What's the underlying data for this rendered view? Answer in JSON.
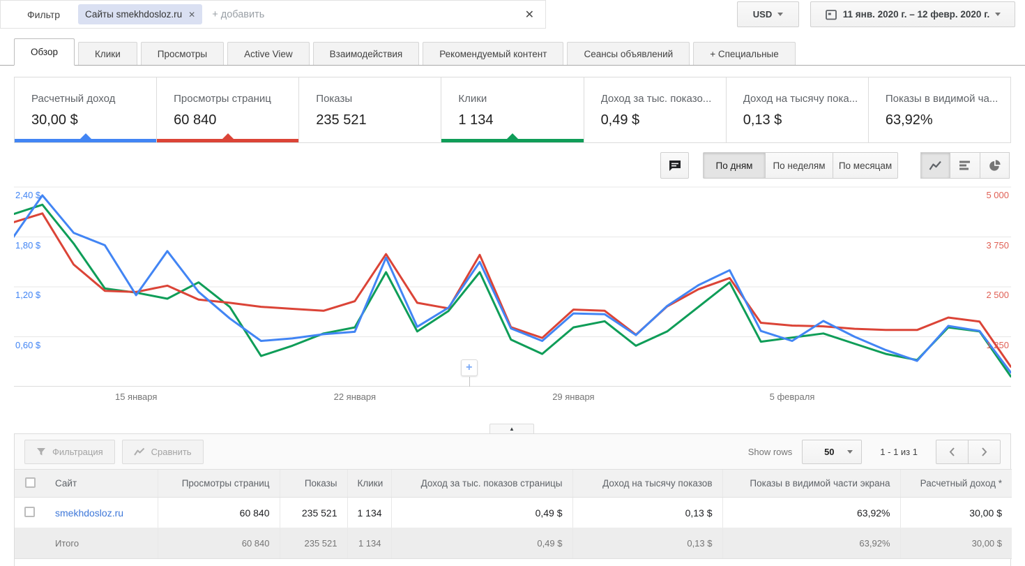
{
  "filter_bar": {
    "label": "Фильтр",
    "chip_text": "Сайты smekhdosloz.ru",
    "chip_remove": "✕",
    "add_placeholder": "+ добавить",
    "clear": "✕"
  },
  "currency_selector": {
    "value": "USD"
  },
  "date_range_picker": {
    "value": "11 янв. 2020 г. – 12 февр. 2020 г."
  },
  "tabs": [
    {
      "label": "Обзор",
      "active": true
    },
    {
      "label": "Клики",
      "active": false
    },
    {
      "label": "Просмотры",
      "active": false
    },
    {
      "label": "Active View",
      "active": false
    },
    {
      "label": "Взаимодействия",
      "active": false
    },
    {
      "label": "Рекомендуемый контент",
      "active": false
    },
    {
      "label": "Сеансы объявлений",
      "active": false
    },
    {
      "label": "+ Специальные",
      "active": false
    }
  ],
  "metric_cards": [
    {
      "label": "Расчетный доход",
      "value": "30,00 $",
      "accent": "#4285f4"
    },
    {
      "label": "Просмотры страниц",
      "value": "60 840",
      "accent": "#db4437"
    },
    {
      "label": "Показы",
      "value": "235 521"
    },
    {
      "label": "Клики",
      "value": "1 134",
      "accent": "#0f9d58"
    },
    {
      "label": "Доход за тыс. показо...",
      "value": "0,49 $"
    },
    {
      "label": "Доход на тысячу пока...",
      "value": "0,13 $"
    },
    {
      "label": "Показы в видимой ча...",
      "value": "63,92%"
    }
  ],
  "chart_controls": {
    "granularity": [
      {
        "label": "По дням",
        "selected": true
      },
      {
        "label": "По неделям",
        "selected": false
      },
      {
        "label": "По месяцам",
        "selected": false
      }
    ],
    "chart_type_icons": [
      "line-chart",
      "bar-chart",
      "pie-chart"
    ],
    "comment_icon": "comment"
  },
  "chart_data": {
    "type": "line",
    "date_range": "11 янв. 2020 – 12 февр. 2020",
    "x_tick_labels": [
      "15 января",
      "22 января",
      "29 января",
      "5 февраля"
    ],
    "x_tick_day_index": [
      4,
      11,
      18,
      25
    ],
    "left_axis": {
      "title": "Расчетный доход",
      "tick_labels": [
        "2,40 $",
        "1,80 $",
        "1,20 $",
        "0,60 $"
      ],
      "ticks": [
        2.4,
        1.8,
        1.2,
        0.6
      ],
      "range": [
        0,
        2.43
      ],
      "color": "#4285f4"
    },
    "right_axis": {
      "title": "Просмотры страниц",
      "tick_labels": [
        "5 000",
        "3 750",
        "2 500",
        "1 250"
      ],
      "ticks": [
        5000,
        3750,
        2500,
        1250
      ],
      "range": [
        0,
        5070
      ],
      "color": "#e06055"
    },
    "series": [
      {
        "name": "Расчетный доход",
        "axis": "left",
        "color": "#4285f4",
        "values": [
          1.76,
          2.3,
          1.85,
          1.7,
          1.1,
          1.63,
          1.14,
          0.82,
          0.55,
          0.58,
          0.63,
          0.66,
          1.55,
          0.72,
          0.95,
          1.5,
          0.7,
          0.55,
          0.88,
          0.87,
          0.62,
          0.97,
          1.22,
          1.4,
          0.67,
          0.55,
          0.79,
          0.6,
          0.44,
          0.31,
          0.73,
          0.67,
          0.17
        ]
      },
      {
        "name": "Просмотры страниц",
        "axis": "right",
        "color": "#db4437",
        "values": [
          4100,
          4340,
          3060,
          2400,
          2370,
          2530,
          2180,
          2100,
          2000,
          1950,
          1900,
          2140,
          3320,
          2100,
          1960,
          3300,
          1490,
          1220,
          1930,
          1900,
          1300,
          2010,
          2440,
          2720,
          1600,
          1530,
          1510,
          1450,
          1420,
          1420,
          1730,
          1630,
          500
        ]
      },
      {
        "name": "Клики",
        "axis": "hidden",
        "color": "#0f9d58",
        "values": [
          84,
          89,
          70,
          48,
          46,
          43,
          51,
          39,
          15,
          20,
          26,
          29,
          56,
          27,
          37,
          56,
          23,
          16,
          29,
          32,
          20,
          27,
          39,
          51,
          22,
          24,
          26,
          21,
          16,
          13,
          29,
          27,
          5
        ]
      }
    ],
    "annotation_marker": {
      "icon": "+",
      "day_index": 14.66
    }
  },
  "collapse_control": {
    "icon": "▲"
  },
  "table": {
    "toolbar": {
      "filter_button": "Фильтрация",
      "compare_button": "Сравнить",
      "show_rows_label": "Show rows",
      "rows_per_page": "50",
      "range": "1 - 1 из 1"
    },
    "columns": [
      "Сайт",
      "Просмотры страниц",
      "Показы",
      "Клики",
      "Доход за тыс. показов страницы",
      "Доход на тысячу показов",
      "Показы в видимой части экрана",
      "Расчетный доход *"
    ],
    "rows": [
      {
        "site": "smekhdosloz.ru",
        "values": [
          "60 840",
          "235 521",
          "1 134",
          "0,49 $",
          "0,13 $",
          "63,92%",
          "30,00 $"
        ]
      }
    ],
    "totals": {
      "label": "Итого",
      "values": [
        "60 840",
        "235 521",
        "1 134",
        "0,49 $",
        "0,13 $",
        "63,92%",
        "30,00 $"
      ]
    }
  }
}
